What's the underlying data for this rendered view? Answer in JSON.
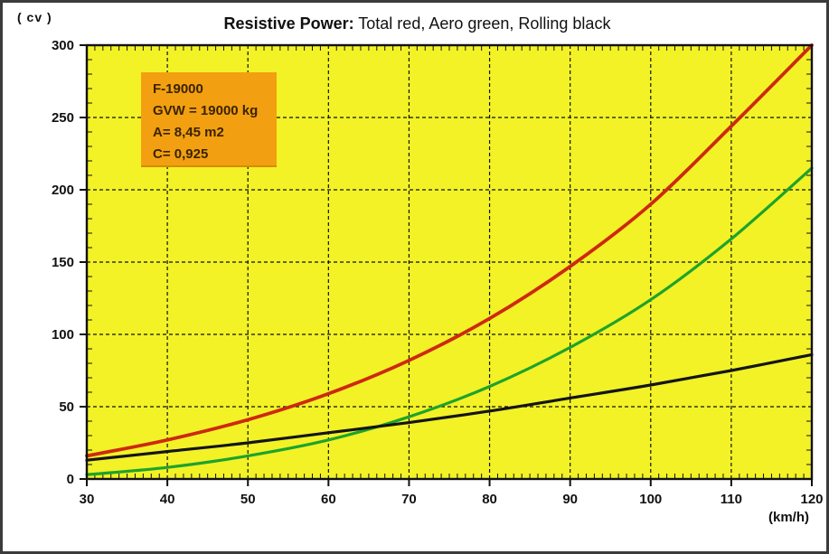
{
  "title": {
    "bold": "Resistive Power:",
    "rest": " Total red, Aero green, Rolling black"
  },
  "frame_color": "#3b3b3b",
  "chart_data": {
    "type": "line",
    "title": "Resistive Power: Total red, Aero green, Rolling black",
    "xlabel": "(km/h)",
    "ylabel": "( cv )",
    "xlim": [
      30,
      120
    ],
    "ylim": [
      0,
      300
    ],
    "x_ticks": [
      30,
      40,
      50,
      60,
      70,
      80,
      90,
      100,
      110,
      120
    ],
    "y_ticks": [
      0,
      50,
      100,
      150,
      200,
      250,
      300
    ],
    "x_minor_step": 1,
    "y_minor_step": 10,
    "grid": "dashed black, major gridlines only",
    "legend_position": "encoded in title text",
    "plot_bg": "#f2f227",
    "axis_color": "#111111",
    "x": [
      30,
      40,
      50,
      60,
      70,
      80,
      90,
      100,
      110,
      120
    ],
    "series": [
      {
        "name": "Total",
        "color": "#ce2910",
        "values": [
          16,
          27,
          41,
          59,
          82,
          111,
          147,
          190,
          244,
          300
        ]
      },
      {
        "name": "Aero",
        "color": "#1ea32b",
        "values": [
          3,
          8,
          16,
          27,
          43,
          64,
          91,
          124,
          166,
          215
        ]
      },
      {
        "name": "Rolling",
        "color": "#141414",
        "values": [
          13,
          19,
          25,
          32,
          39,
          47,
          56,
          65,
          75,
          86
        ]
      }
    ],
    "annotation": {
      "bg": "#f2a011",
      "text_color": "#3b2300",
      "lines": [
        "F-19000",
        "GVW = 19000 kg",
        "A= 8,45 m2",
        "C= 0,925"
      ]
    }
  }
}
